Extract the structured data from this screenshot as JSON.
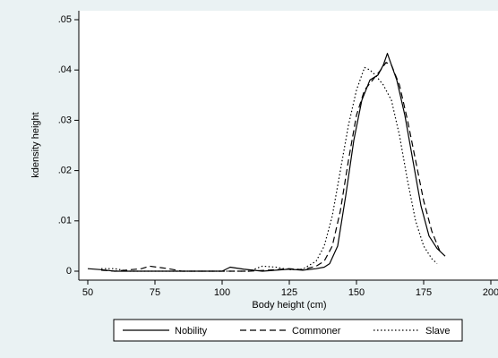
{
  "chart_data": {
    "type": "line",
    "xlabel": "Body height (cm)",
    "ylabel": "kdensity height",
    "xlim": [
      50,
      200
    ],
    "xticks": [
      50,
      75,
      100,
      125,
      150,
      175,
      200
    ],
    "ylim": [
      0,
      0.05
    ],
    "yticks": [
      0,
      {
        "value": 0.01,
        "label": ".01"
      },
      {
        "value": 0.02,
        "label": ".02"
      },
      {
        "value": 0.03,
        "label": ".03"
      },
      {
        "value": 0.04,
        "label": ".04"
      },
      {
        "value": 0.05,
        "label": ".05"
      }
    ],
    "legend": "bottom",
    "series": [
      {
        "name": "Nobility",
        "color": "#000000",
        "line_style": "solid",
        "x": [
          50,
          55,
          60,
          100,
          103,
          108,
          115,
          125,
          130,
          135,
          138,
          140,
          143,
          146,
          149,
          152,
          155,
          158,
          160,
          161.5,
          163,
          165,
          168,
          171,
          174,
          177,
          180,
          183
        ],
        "values": [
          0.0005,
          0.0003,
          0,
          0,
          0.0008,
          0.0004,
          0,
          0.0004,
          0.0002,
          0.0005,
          0.0008,
          0.0015,
          0.005,
          0.015,
          0.026,
          0.034,
          0.038,
          0.039,
          0.041,
          0.0433,
          0.041,
          0.038,
          0.031,
          0.022,
          0.013,
          0.007,
          0.0045,
          0.003
        ]
      },
      {
        "name": "Commoner",
        "color": "#000000",
        "line_style": "dashed",
        "x": [
          55,
          60,
          70,
          73,
          80,
          85,
          100,
          110,
          120,
          125,
          130,
          135,
          138,
          141,
          144,
          147,
          150,
          153,
          156,
          159,
          161,
          163,
          166,
          169,
          172,
          175,
          178,
          181
        ],
        "values": [
          0.0002,
          0,
          0.0005,
          0.001,
          0.0005,
          0,
          0,
          0,
          0.0003,
          0.0005,
          0.0003,
          0.001,
          0.002,
          0.005,
          0.012,
          0.022,
          0.031,
          0.036,
          0.038,
          0.04,
          0.0415,
          0.041,
          0.037,
          0.03,
          0.022,
          0.014,
          0.008,
          0.004
        ]
      },
      {
        "name": "Slave",
        "color": "#000000",
        "line_style": "dotted",
        "x": [
          55,
          60,
          65,
          110,
          115,
          120,
          125,
          130,
          135,
          138,
          141,
          144,
          147,
          150,
          153,
          155,
          157,
          160,
          163,
          166,
          169,
          172,
          175,
          178,
          180
        ],
        "values": [
          0.0005,
          0.0005,
          0,
          0,
          0.001,
          0.0008,
          0.0003,
          0.0004,
          0.002,
          0.005,
          0.011,
          0.02,
          0.029,
          0.036,
          0.0405,
          0.04,
          0.039,
          0.037,
          0.034,
          0.027,
          0.018,
          0.01,
          0.005,
          0.0025,
          0.0015
        ]
      }
    ]
  }
}
